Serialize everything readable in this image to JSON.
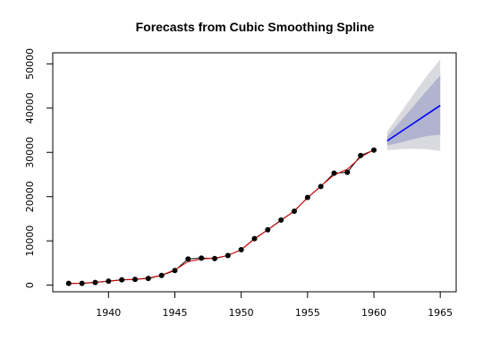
{
  "chart_data": {
    "type": "line",
    "title": "Forecasts from Cubic Smoothing Spline",
    "xlabel": "",
    "ylabel": "",
    "xlim": [
      1935.8,
      1966.2
    ],
    "ylim": [
      -1500,
      52500
    ],
    "x_ticks": [
      1940,
      1945,
      1950,
      1955,
      1960,
      1965
    ],
    "y_ticks": [
      0,
      10000,
      20000,
      30000,
      40000,
      50000
    ],
    "x_tick_labels": [
      "1940",
      "1945",
      "1950",
      "1955",
      "1960",
      "1965"
    ],
    "y_tick_labels": [
      "0",
      "10000",
      "20000",
      "30000",
      "40000",
      "50000"
    ],
    "grid": false,
    "legend": "none",
    "colors": {
      "observed_points": "#000000",
      "observed_line": "#000000",
      "fitted_line": "#dd0000",
      "forecast_line": "#0000ff",
      "band_80": "#b0b4cf",
      "band_95": "#d9d9e0"
    },
    "series": [
      {
        "role": "observed",
        "x": [
          1937,
          1938,
          1939,
          1940,
          1941,
          1942,
          1943,
          1944,
          1945,
          1946,
          1947,
          1948,
          1949,
          1950,
          1951,
          1952,
          1953,
          1954,
          1955,
          1956,
          1957,
          1958,
          1959,
          1960
        ],
        "y": [
          400,
          400,
          600,
          900,
          1200,
          1300,
          1500,
          2200,
          3300,
          5900,
          6100,
          6000,
          6700,
          8000,
          10500,
          12500,
          14700,
          16700,
          19800,
          22300,
          25300,
          25500,
          29300,
          30500
        ]
      },
      {
        "role": "fitted",
        "x": [
          1937,
          1938,
          1939,
          1940,
          1941,
          1942,
          1943,
          1944,
          1945,
          1946,
          1947,
          1948,
          1949,
          1950,
          1951,
          1952,
          1953,
          1954,
          1955,
          1956,
          1957,
          1958,
          1959,
          1960
        ],
        "y": [
          350,
          450,
          650,
          900,
          1150,
          1300,
          1600,
          2250,
          3450,
          5300,
          5900,
          6100,
          6700,
          8000,
          10400,
          12500,
          14600,
          16800,
          19700,
          22400,
          24900,
          26200,
          28900,
          30600
        ]
      },
      {
        "role": "forecast",
        "x": [
          1961,
          1962,
          1963,
          1964,
          1965
        ],
        "y": [
          32600,
          34600,
          36600,
          38600,
          40600
        ],
        "lo80": [
          31600,
          32200,
          33000,
          33700,
          34000
        ],
        "hi80": [
          33600,
          37000,
          40500,
          44000,
          47400
        ],
        "lo95": [
          30500,
          30700,
          30800,
          30700,
          30300
        ],
        "hi95": [
          34700,
          38900,
          43200,
          47300,
          51000
        ]
      }
    ]
  }
}
